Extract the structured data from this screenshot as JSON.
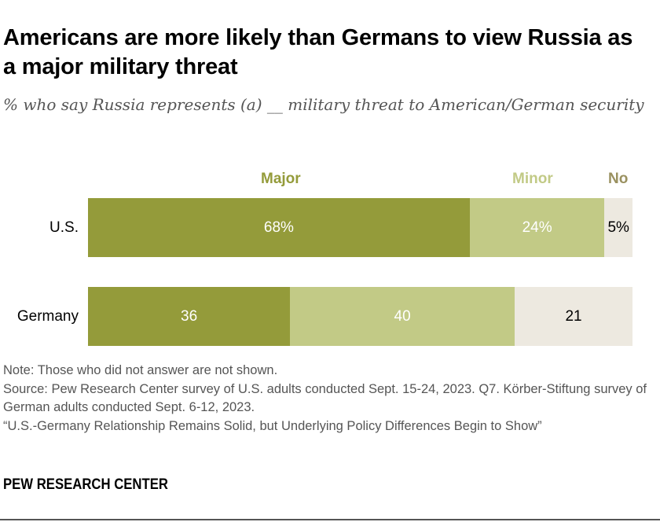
{
  "title": "Americans are more likely than Germans to view Russia as a major military threat",
  "subtitle": "% who say Russia represents (a) __ military threat to American/German security",
  "chart_data": {
    "type": "bar",
    "orientation": "horizontal-stacked",
    "categories": [
      "U.S.",
      "Germany"
    ],
    "series": [
      {
        "name": "Major",
        "values": [
          68,
          36
        ],
        "labels": [
          "68%",
          "36"
        ],
        "color": "#949b3a",
        "text_color": "#ffffff"
      },
      {
        "name": "Minor",
        "values": [
          24,
          40
        ],
        "labels": [
          "24%",
          "40"
        ],
        "color": "#c2ca86",
        "text_color": "#ffffff"
      },
      {
        "name": "No",
        "values": [
          5,
          21
        ],
        "labels": [
          "5%",
          "21"
        ],
        "color": "#ede9e0",
        "text_color": "#000000",
        "legend_color": "#9a9160"
      }
    ],
    "xlim": [
      0,
      100
    ],
    "legend": "top"
  },
  "notes": [
    "Note: Those who did not answer are not shown.",
    "Source: Pew Research Center survey of U.S. adults conducted Sept. 15-24, 2023. Q7. Körber-Stiftung survey of German adults conducted Sept. 6-12, 2023.",
    "“U.S.-Germany Relationship Remains Solid, but Underlying Policy Differences Begin to Show”"
  ],
  "brand": "PEW RESEARCH CENTER"
}
